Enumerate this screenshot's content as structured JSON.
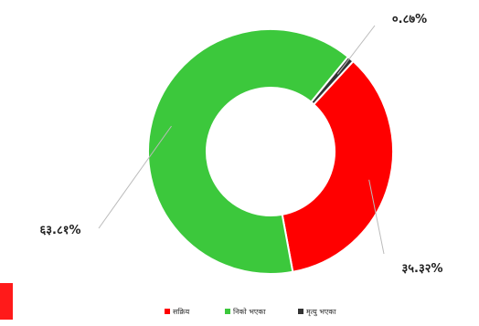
{
  "chart_data": {
    "type": "pie",
    "donut": true,
    "title": "",
    "labels": [
      "सक्रिय",
      "निको भएका",
      "मृत्यु भएका"
    ],
    "values": [
      35.32,
      63.81,
      0.87
    ],
    "display_labels": [
      "३५.३२%",
      "६३.८१%",
      "०.८७%"
    ],
    "colors": [
      "#ff0000",
      "#3cc83c",
      "#333333"
    ],
    "legend_position": "bottom"
  }
}
